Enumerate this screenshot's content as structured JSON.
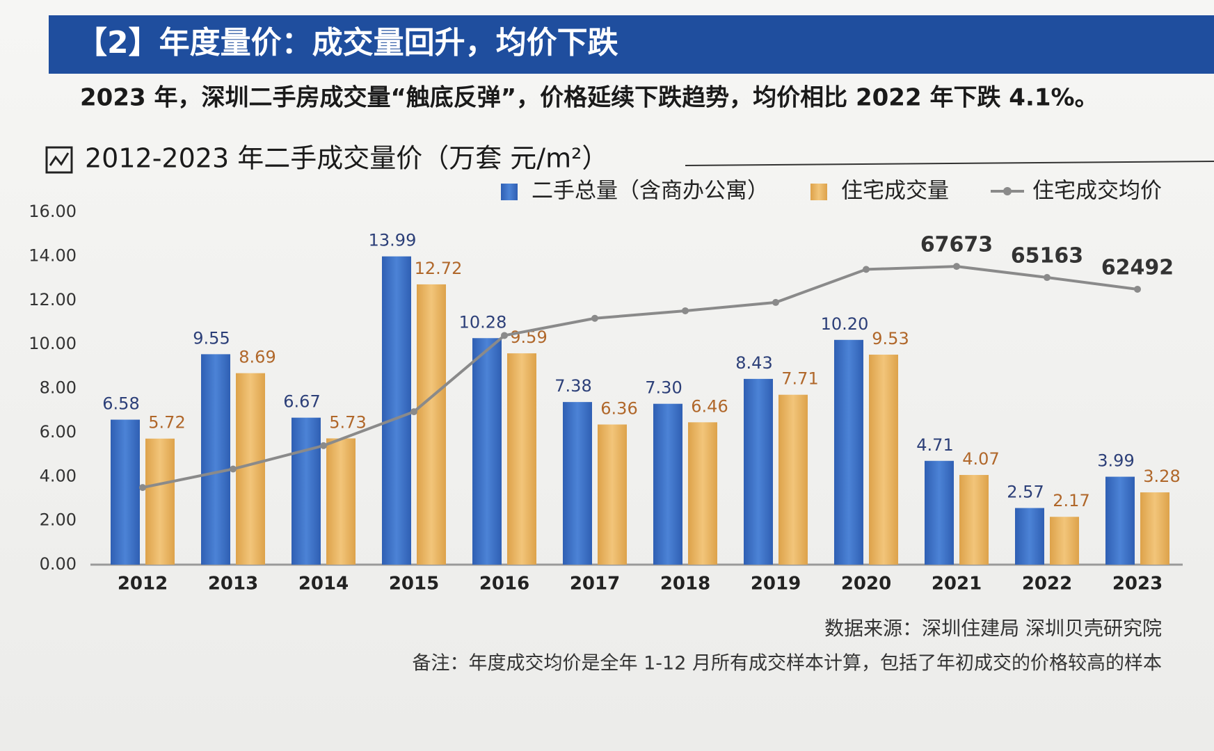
{
  "chart_data": {
    "type": "bar",
    "header": "【2】年度量价：成交量回升，均价下跌",
    "subtitle": "2023 年，深圳二手房成交量“触底反弹”，价格延续下跌趋势，均价相比 2022 年下跌 4.1%。",
    "title": "2012-2023 年二手成交量价（万套 元/m²）",
    "source": "数据来源：深圳住建局  深圳贝壳研究院",
    "note": "备注：年度成交均价是全年 1-12 月所有成交样本计算，包括了年初成交的价格较高的样本",
    "categories": [
      "2012",
      "2013",
      "2014",
      "2015",
      "2016",
      "2017",
      "2018",
      "2019",
      "2020",
      "2021",
      "2022",
      "2023"
    ],
    "series": [
      {
        "name": "二手总量（含商办公寓）",
        "type": "bar",
        "color": "#3b6fc6",
        "label_color": "#2c3f78",
        "values": [
          6.58,
          9.55,
          6.67,
          13.99,
          10.28,
          7.38,
          7.3,
          8.43,
          10.2,
          4.71,
          2.57,
          3.99
        ],
        "value_labels": [
          "6.58",
          "9.55",
          "6.67",
          "13.99",
          "10.28",
          "7.38",
          "7.30",
          "8.43",
          "10.20",
          "4.71",
          "2.57",
          "3.99"
        ]
      },
      {
        "name": "住宅成交量",
        "type": "bar",
        "color": "#e8b45e",
        "label_color": "#b0672a",
        "values": [
          5.72,
          8.69,
          5.73,
          12.72,
          9.59,
          6.36,
          6.46,
          7.71,
          9.53,
          4.07,
          2.17,
          3.28
        ],
        "value_labels": [
          "5.72",
          "8.69",
          "5.73",
          "12.72",
          "9.59",
          "6.36",
          "6.46",
          "7.71",
          "9.53",
          "4.07",
          "2.17",
          "3.28"
        ]
      },
      {
        "name": "住宅成交均价",
        "type": "line",
        "axis": "y2",
        "color": "#8a8a8a",
        "label_color": "#333333",
        "values": [
          17500,
          21700,
          27000,
          34700,
          52000,
          55900,
          57600,
          59500,
          67000,
          67673,
          65163,
          62492
        ],
        "value_labels": [
          null,
          null,
          null,
          null,
          null,
          null,
          null,
          null,
          null,
          "67673",
          "65163",
          "62492"
        ]
      }
    ],
    "ylim": [
      0,
      16
    ],
    "yticks": [
      {
        "value": 0,
        "label": "0.00"
      },
      {
        "value": 2,
        "label": "2.00"
      },
      {
        "value": 4,
        "label": "4.00"
      },
      {
        "value": 6,
        "label": "6.00"
      },
      {
        "value": 8,
        "label": "8.00"
      },
      {
        "value": 10,
        "label": "10.00"
      },
      {
        "value": 12,
        "label": "12.00"
      },
      {
        "value": 14,
        "label": "14.00"
      },
      {
        "value": 16,
        "label": "16.00"
      }
    ],
    "y2lim": [
      0,
      80000
    ],
    "grid": false
  }
}
